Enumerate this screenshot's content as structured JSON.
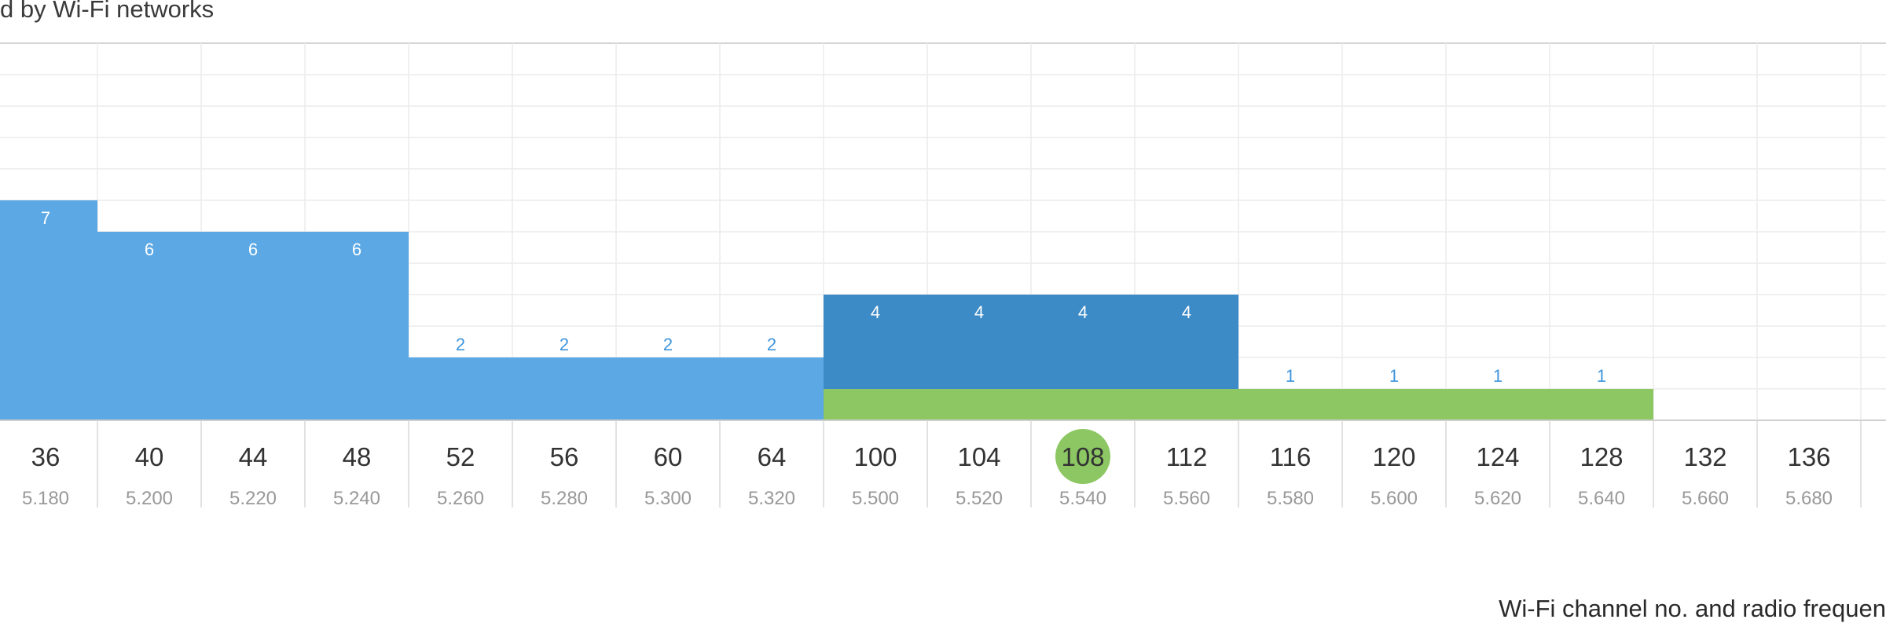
{
  "chart_data": {
    "type": "bar",
    "title": "d by Wi-Fi networks",
    "xlabel": "Wi-Fi channel no. and radio frequen",
    "ylabel": "",
    "ylim": [
      0,
      12
    ],
    "grid": true,
    "categories": [
      "36",
      "40",
      "44",
      "48",
      "52",
      "56",
      "60",
      "64",
      "100",
      "104",
      "108",
      "112",
      "116",
      "120",
      "124",
      "128",
      "132",
      "136"
    ],
    "frequencies": [
      "5.180",
      "5.200",
      "5.220",
      "5.240",
      "5.260",
      "5.280",
      "5.300",
      "5.320",
      "5.500",
      "5.520",
      "5.540",
      "5.560",
      "5.580",
      "5.600",
      "5.620",
      "5.640",
      "5.660",
      "5.680"
    ],
    "bars": [
      {
        "channels": [
          "36"
        ],
        "value": 7,
        "label": "7"
      },
      {
        "channels": [
          "40"
        ],
        "value": 6,
        "label": "6"
      },
      {
        "channels": [
          "44"
        ],
        "value": 6,
        "label": "6"
      },
      {
        "channels": [
          "48"
        ],
        "value": 6,
        "label": "6"
      },
      {
        "channels": [
          "52",
          "56",
          "60",
          "64"
        ],
        "value": 2,
        "labels": [
          "2",
          "2",
          "2",
          "2"
        ]
      },
      {
        "channels": [
          "100",
          "104",
          "108",
          "112"
        ],
        "value": 4,
        "labels": [
          "4",
          "4",
          "4",
          "4"
        ],
        "highlight": true
      },
      {
        "channels": [
          "116",
          "120",
          "124",
          "128"
        ],
        "value": 1,
        "labels": [
          "1",
          "1",
          "1",
          "1"
        ]
      }
    ],
    "current_network": {
      "channels": [
        "100",
        "104",
        "108",
        "112",
        "116",
        "120",
        "124",
        "128"
      ],
      "value": 1
    },
    "selected_channel": "108",
    "colors": {
      "bar": "#5ba8e4",
      "bar_highlight": "#3c8ac6",
      "current_network": "#8cc763",
      "label_inside": "#ffffff",
      "label_outside": "#3f95dc",
      "grid": "#ececec"
    }
  }
}
